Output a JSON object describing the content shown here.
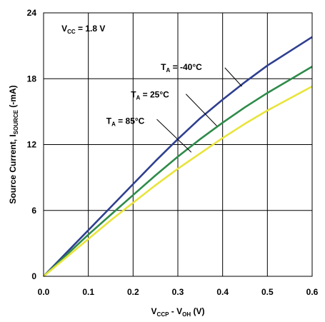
{
  "chart_data": {
    "type": "line",
    "title": "",
    "xlabel": {
      "main": "V",
      "sub1": "CCP",
      "mid": " - V",
      "sub2": "OH",
      "tail": " (V)"
    },
    "ylabel": {
      "main": "Source Current, I",
      "sub": "SOURCE",
      "tail": " (-mA)"
    },
    "xlim": [
      0,
      0.6
    ],
    "ylim": [
      0,
      24
    ],
    "xticks": [
      0.0,
      0.1,
      0.2,
      0.3,
      0.4,
      0.5,
      0.6
    ],
    "xtick_labels": [
      "0.0",
      "0.1",
      "0.2",
      "0.3",
      "0.4",
      "0.5",
      "0.6"
    ],
    "yticks": [
      0,
      6,
      12,
      18,
      24
    ],
    "ytick_labels": [
      "0",
      "6",
      "12",
      "18",
      "24"
    ],
    "grid": true,
    "annotation_vcc": {
      "main": "V",
      "sub": "CC",
      "tail": " = 1.8 V"
    },
    "series": [
      {
        "label": {
          "main": "T",
          "sub": "A",
          "tail": " = -40°C"
        },
        "color": "#2e3f8f",
        "x": [
          0.0,
          0.05,
          0.1,
          0.15,
          0.2,
          0.25,
          0.3,
          0.35,
          0.4,
          0.45,
          0.5,
          0.55,
          0.6
        ],
        "y": [
          0.0,
          2.1,
          4.2,
          6.3,
          8.4,
          10.5,
          12.5,
          14.4,
          16.1,
          17.7,
          19.2,
          20.5,
          21.8
        ]
      },
      {
        "label": {
          "main": "T",
          "sub": "A",
          "tail": " = 25°C"
        },
        "color": "#2e8b4a",
        "x": [
          0.0,
          0.05,
          0.1,
          0.15,
          0.2,
          0.25,
          0.3,
          0.35,
          0.4,
          0.45,
          0.5,
          0.55,
          0.6
        ],
        "y": [
          0.0,
          1.9,
          3.8,
          5.6,
          7.4,
          9.2,
          10.9,
          12.5,
          14.0,
          15.4,
          16.7,
          17.9,
          19.1
        ]
      },
      {
        "label": {
          "main": "T",
          "sub": "A",
          "tail": " = 85°C"
        },
        "color": "#e8e43a",
        "x": [
          0.0,
          0.05,
          0.1,
          0.15,
          0.2,
          0.25,
          0.3,
          0.35,
          0.4,
          0.45,
          0.5,
          0.55,
          0.6
        ],
        "y": [
          0.0,
          1.7,
          3.4,
          5.1,
          6.7,
          8.3,
          9.8,
          11.2,
          12.6,
          13.9,
          15.1,
          16.2,
          17.3
        ]
      }
    ]
  }
}
